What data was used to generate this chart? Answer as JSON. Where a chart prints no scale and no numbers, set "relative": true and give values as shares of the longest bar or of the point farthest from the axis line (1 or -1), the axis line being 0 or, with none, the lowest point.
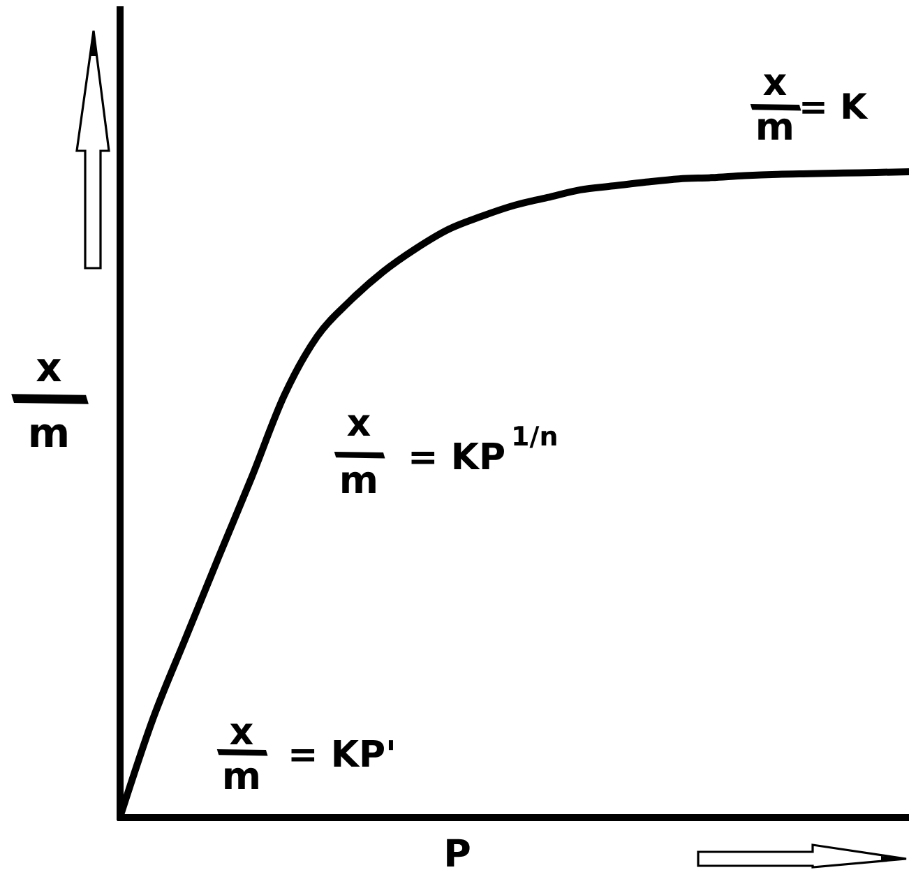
{
  "chart_data": {
    "type": "line",
    "relative": true,
    "xlabel": "P",
    "ylabel": "x/m",
    "annotations": [
      "x/m= K",
      "x/m = KP$^{1/n}$",
      "x/m = KP'"
    ],
    "categories": [
      null,
      null,
      null,
      null,
      null,
      null,
      null,
      null,
      null,
      null,
      null,
      null,
      null,
      null,
      null,
      null,
      null,
      null,
      null,
      null,
      null,
      null,
      null,
      null,
      null
    ],
    "values": [
      0,
      0.152,
      0.278,
      0.403,
      0.526,
      0.654,
      0.745,
      0.8,
      0.845,
      0.881,
      0.911,
      0.931,
      0.948,
      0.96,
      0.972,
      0.978,
      0.984,
      0.989,
      0.991,
      0.994,
      0.996,
      0.997,
      0.998,
      0.999,
      1
    ],
    "color": "#000000"
  }
}
